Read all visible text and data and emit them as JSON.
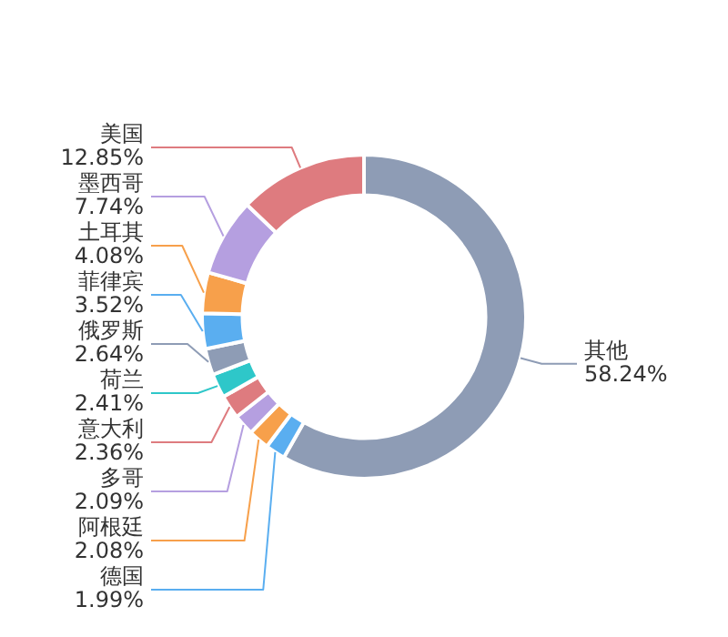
{
  "chart_data": {
    "type": "donut",
    "categories": [
      "其他",
      "德国",
      "阿根廷",
      "多哥",
      "意大利",
      "荷兰",
      "俄罗斯",
      "菲律宾",
      "土耳其",
      "墨西哥",
      "美国"
    ],
    "values": [
      58.24,
      1.99,
      2.08,
      2.09,
      2.36,
      2.41,
      2.64,
      3.52,
      4.08,
      7.74,
      12.85
    ],
    "value_labels": [
      "58.24%",
      "1.99%",
      "2.08%",
      "2.09%",
      "2.36%",
      "2.41%",
      "2.64%",
      "3.52%",
      "4.08%",
      "7.74%",
      "12.85%"
    ],
    "colors": [
      "#8e9cb5",
      "#5aaef0",
      "#f7a04b",
      "#b59fe0",
      "#de7b7f",
      "#2ec7c9",
      "#8e9cb5",
      "#5aaef0",
      "#f7a04b",
      "#b59fe0",
      "#de7b7f"
    ],
    "legend": false
  }
}
